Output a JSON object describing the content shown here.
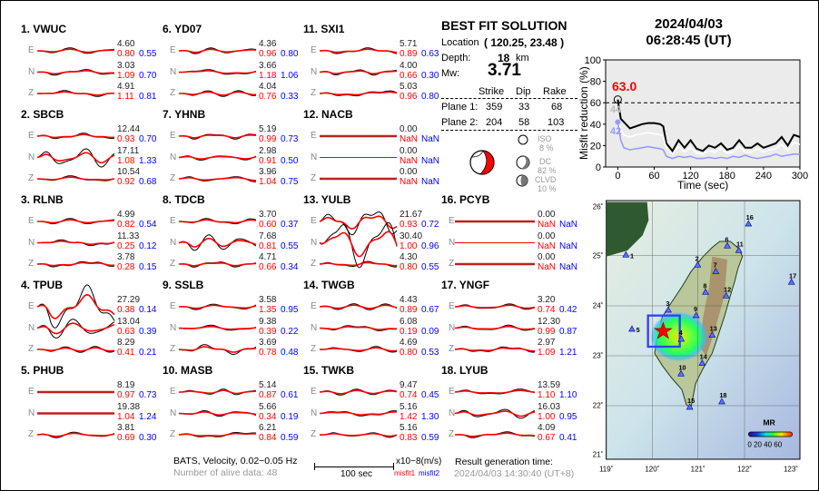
{
  "stations": [
    {
      "label": "1.  VWUC",
      "comps": [
        {
          "c": "E",
          "amp": "4.60",
          "m1": "0.80",
          "m2": "0.55"
        },
        {
          "c": "N",
          "amp": "3.03",
          "m1": "1.09",
          "m2": "0.70"
        },
        {
          "c": "Z",
          "amp": "4.91",
          "m1": "1.11",
          "m2": "0.81"
        }
      ]
    },
    {
      "label": "2.  SBCB",
      "comps": [
        {
          "c": "E",
          "amp": "12.44",
          "m1": "0.93",
          "m2": "0.70"
        },
        {
          "c": "N",
          "amp": "17.11",
          "m1": "1.08",
          "m2": "1.33"
        },
        {
          "c": "Z",
          "amp": "10.54",
          "m1": "0.92",
          "m2": "0.68"
        }
      ]
    },
    {
      "label": "3.  RLNB",
      "comps": [
        {
          "c": "E",
          "amp": "4.99",
          "m1": "0.82",
          "m2": "0.54"
        },
        {
          "c": "N",
          "amp": "11.33",
          "m1": "0.25",
          "m2": "0.12"
        },
        {
          "c": "Z",
          "amp": "3.78",
          "m1": "0.28",
          "m2": "0.15"
        }
      ]
    },
    {
      "label": "4.  TPUB",
      "comps": [
        {
          "c": "E",
          "amp": "27.29",
          "m1": "0.38",
          "m2": "0.14"
        },
        {
          "c": "N",
          "amp": "13.04",
          "m1": "0.63",
          "m2": "0.39"
        },
        {
          "c": "Z",
          "amp": "8.29",
          "m1": "0.41",
          "m2": "0.21"
        }
      ]
    },
    {
      "label": "5.  PHUB",
      "comps": [
        {
          "c": "E",
          "amp": "8.19",
          "m1": "0.97",
          "m2": "0.73"
        },
        {
          "c": "N",
          "amp": "19.38",
          "m1": "1.04",
          "m2": "1.24"
        },
        {
          "c": "Z",
          "amp": "3.81",
          "m1": "0.69",
          "m2": "0.30"
        }
      ]
    },
    {
      "label": "6.  YD07",
      "comps": [
        {
          "c": "E",
          "amp": "4.36",
          "m1": "0.96",
          "m2": "0.80"
        },
        {
          "c": "N",
          "amp": "3.66",
          "m1": "1.18",
          "m2": "1.06"
        },
        {
          "c": "Z",
          "amp": "4.04",
          "m1": "0.76",
          "m2": "0.33"
        }
      ]
    },
    {
      "label": "7.  YHNB",
      "comps": [
        {
          "c": "E",
          "amp": "5.19",
          "m1": "0.99",
          "m2": "0.73"
        },
        {
          "c": "N",
          "amp": "2.98",
          "m1": "0.91",
          "m2": "0.50"
        },
        {
          "c": "Z",
          "amp": "3.96",
          "m1": "1.04",
          "m2": "0.75"
        }
      ]
    },
    {
      "label": "8.  TDCB",
      "comps": [
        {
          "c": "E",
          "amp": "3.70",
          "m1": "0.60",
          "m2": "0.37"
        },
        {
          "c": "N",
          "amp": "7.68",
          "m1": "0.81",
          "m2": "0.55"
        },
        {
          "c": "Z",
          "amp": "4.71",
          "m1": "0.66",
          "m2": "0.34"
        }
      ]
    },
    {
      "label": "9.  SSLB",
      "comps": [
        {
          "c": "E",
          "amp": "3.58",
          "m1": "1.35",
          "m2": "0.95"
        },
        {
          "c": "N",
          "amp": "9.38",
          "m1": "0.39",
          "m2": "0.22"
        },
        {
          "c": "Z",
          "amp": "3.69",
          "m1": "0.78",
          "m2": "0.48"
        }
      ]
    },
    {
      "label": "10. MASB",
      "comps": [
        {
          "c": "E",
          "amp": "5.14",
          "m1": "0.87",
          "m2": "0.61"
        },
        {
          "c": "N",
          "amp": "5.66",
          "m1": "0.34",
          "m2": "0.19"
        },
        {
          "c": "Z",
          "amp": "6.21",
          "m1": "0.84",
          "m2": "0.59"
        }
      ]
    },
    {
      "label": "11. SXI1",
      "comps": [
        {
          "c": "E",
          "amp": "5.71",
          "m1": "0.89",
          "m2": "0.63"
        },
        {
          "c": "N",
          "amp": "4.00",
          "m1": "0.66",
          "m2": "0.30"
        },
        {
          "c": "Z",
          "amp": "5.03",
          "m1": "0.96",
          "m2": "0.80"
        }
      ]
    },
    {
      "label": "12. NACB",
      "comps": [
        {
          "c": "E",
          "amp": "0.00",
          "m1": "NaN",
          "m2": "NaN"
        },
        {
          "c": "N",
          "amp": "0.00",
          "m1": "NaN",
          "m2": "NaN"
        },
        {
          "c": "Z",
          "amp": "0.00",
          "m1": "NaN",
          "m2": "NaN"
        }
      ]
    },
    {
      "label": "13. YULB",
      "comps": [
        {
          "c": "E",
          "amp": "21.67",
          "m1": "0.93",
          "m2": "0.72"
        },
        {
          "c": "N",
          "amp": "30.40",
          "m1": "1.00",
          "m2": "0.96"
        },
        {
          "c": "Z",
          "amp": "4.30",
          "m1": "0.80",
          "m2": "0.55"
        }
      ]
    },
    {
      "label": "14. TWGB",
      "comps": [
        {
          "c": "E",
          "amp": "4.43",
          "m1": "0.89",
          "m2": "0.67"
        },
        {
          "c": "N",
          "amp": "6.08",
          "m1": "0.19",
          "m2": "0.09"
        },
        {
          "c": "Z",
          "amp": "4.69",
          "m1": "0.80",
          "m2": "0.53"
        }
      ]
    },
    {
      "label": "15. TWKB",
      "comps": [
        {
          "c": "E",
          "amp": "9.47",
          "m1": "0.74",
          "m2": "0.45"
        },
        {
          "c": "N",
          "amp": "5.16",
          "m1": "1.42",
          "m2": "1.30"
        },
        {
          "c": "Z",
          "amp": "5.16",
          "m1": "0.83",
          "m2": "0.59"
        }
      ]
    },
    {
      "label": "16. PCYB",
      "comps": [
        {
          "c": "E",
          "amp": "0.00",
          "m1": "NaN",
          "m2": "NaN"
        },
        {
          "c": "N",
          "amp": "0.00",
          "m1": "NaN",
          "m2": "NaN"
        },
        {
          "c": "Z",
          "amp": "0.00",
          "m1": "NaN",
          "m2": "NaN"
        }
      ]
    },
    {
      "label": "17. YNGF",
      "comps": [
        {
          "c": "E",
          "amp": "3.20",
          "m1": "0.74",
          "m2": "0.42"
        },
        {
          "c": "N",
          "amp": "12.30",
          "m1": "0.99",
          "m2": "0.87"
        },
        {
          "c": "Z",
          "amp": "2.97",
          "m1": "1.09",
          "m2": "1.21"
        }
      ]
    },
    {
      "label": "18. LYUB",
      "comps": [
        {
          "c": "E",
          "amp": "13.59",
          "m1": "1.10",
          "m2": "1.10"
        },
        {
          "c": "N",
          "amp": "16.03",
          "m1": "1.00",
          "m2": "0.95"
        },
        {
          "c": "Z",
          "amp": "4.09",
          "m1": "0.67",
          "m2": "0.41"
        }
      ]
    }
  ],
  "solution": {
    "title": "BEST FIT SOLUTION",
    "location_label": "Location",
    "location": "( 120.25,  23.48 )",
    "depth_label": "Depth:",
    "depth": "18",
    "depth_unit": "km",
    "mw_label": "Mw:",
    "mw": "3.71",
    "headers": [
      "Strike",
      "Dip",
      "Rake"
    ],
    "planes": [
      {
        "label": "Plane 1:",
        "strike": "359",
        "dip": "33",
        "rake": "68"
      },
      {
        "label": "Plane 2:",
        "strike": "204",
        "dip": "58",
        "rake": "103"
      }
    ],
    "iso": {
      "label": "ISO",
      "pct": "8  %"
    },
    "dc": {
      "label": "DC",
      "pct": "82 %"
    },
    "clvd": {
      "label": "CLVD",
      "pct": "10 %"
    }
  },
  "footer": {
    "network": "BATS, Velocity, 0.02−0.05 Hz",
    "alive": "Number of alive data: 48",
    "scale": "100 sec",
    "unit": "x10−8(m/s)",
    "misfit1": "misfit1",
    "misfit2": "misfit2",
    "gen_label": "Result generation time:",
    "gen_time": "2024/04/03 14:30:40 (UT+8)"
  },
  "event": {
    "date": "2024/04/03",
    "time": "06:28:45  (UT)"
  },
  "chart_data": {
    "type": "line",
    "xlabel": "Time (sec)",
    "ylabel": "Misfit reduction (%)",
    "xlim": [
      -20,
      300
    ],
    "ylim": [
      0,
      100
    ],
    "xticks": [
      0,
      60,
      120,
      180,
      240,
      300
    ],
    "yticks": [
      0,
      20,
      40,
      60,
      80,
      100
    ],
    "threshold": 60,
    "best_label": "63.0",
    "white_label": "44",
    "blue_label": "42",
    "x": [
      0,
      5,
      10,
      20,
      30,
      40,
      50,
      60,
      70,
      75,
      80,
      90,
      100,
      110,
      120,
      130,
      140,
      150,
      160,
      170,
      180,
      190,
      200,
      210,
      220,
      230,
      240,
      250,
      260,
      270,
      280,
      290,
      300
    ],
    "series": [
      {
        "color": "#000000",
        "values": [
          63,
          45,
          42,
          36,
          38,
          40,
          41,
          41,
          40,
          38,
          22,
          15,
          25,
          18,
          25,
          17,
          15,
          20,
          18,
          22,
          16,
          18,
          25,
          18,
          18,
          22,
          18,
          20,
          22,
          28,
          20,
          30,
          28
        ]
      },
      {
        "color": "#ffffff",
        "values": [
          44,
          35,
          30,
          28,
          30,
          31,
          32,
          31,
          30,
          29,
          17,
          12,
          19,
          14,
          18,
          13,
          12,
          15,
          14,
          17,
          13,
          14,
          19,
          14,
          14,
          17,
          14,
          16,
          17,
          21,
          15,
          23,
          21
        ]
      },
      {
        "color": "#9999ff",
        "values": [
          42,
          25,
          18,
          16,
          17,
          18,
          19,
          18,
          17,
          16,
          10,
          8,
          10,
          9,
          10,
          8,
          8,
          9,
          8,
          9,
          8,
          10,
          9,
          11,
          9,
          8,
          9,
          10,
          12,
          10,
          11,
          12,
          12
        ]
      }
    ]
  },
  "map": {
    "lon_ticks": [
      "119˚",
      "120˚",
      "121˚",
      "122˚",
      "123˚"
    ],
    "lat_ticks": [
      "26˚",
      "25˚",
      "24˚",
      "23˚",
      "22˚",
      "21˚"
    ],
    "colorbar_title": "MR",
    "colorbar_ticks": "0 20 40 60",
    "station_labels": [
      "1",
      "2",
      "3",
      "4",
      "5",
      "6",
      "7",
      "8",
      "9",
      "10",
      "11",
      "12",
      "13",
      "14",
      "15",
      "16",
      "17",
      "18"
    ]
  }
}
